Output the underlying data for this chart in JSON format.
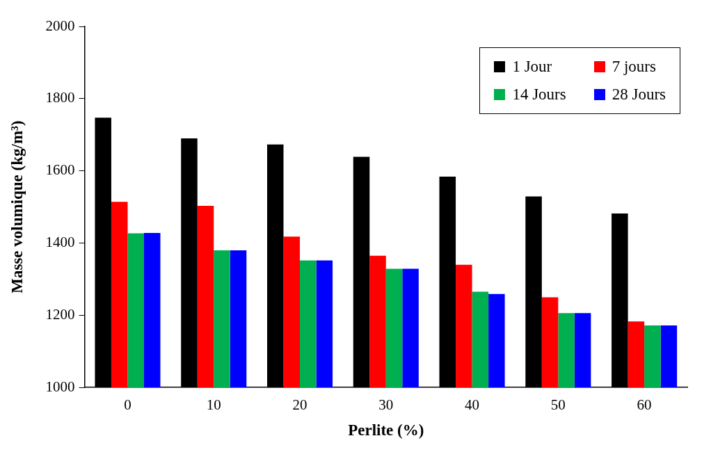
{
  "chart_data": {
    "type": "bar",
    "xlabel": "Perlite (%)",
    "ylabel": "Masse volumique (kg/m³)",
    "categories": [
      "0",
      "10",
      "20",
      "30",
      "40",
      "50",
      "60"
    ],
    "series": [
      {
        "name": "1 Jour",
        "color": "#000000",
        "values": [
          1747,
          1690,
          1673,
          1639,
          1584,
          1529,
          1482
        ]
      },
      {
        "name": "7 jours",
        "color": "#ff0000",
        "values": [
          1514,
          1503,
          1418,
          1365,
          1340,
          1250,
          1183
        ]
      },
      {
        "name": "14 Jours",
        "color": "#00b050",
        "values": [
          1427,
          1380,
          1352,
          1329,
          1265,
          1206,
          1172
        ]
      },
      {
        "name": "28 Jours",
        "color": "#0000ff",
        "values": [
          1428,
          1380,
          1352,
          1329,
          1259,
          1206,
          1172
        ]
      }
    ],
    "ylim": [
      1000,
      2000
    ],
    "yticks": [
      1000,
      1200,
      1400,
      1600,
      1800,
      2000
    ],
    "grid": false,
    "legend": "top right"
  }
}
